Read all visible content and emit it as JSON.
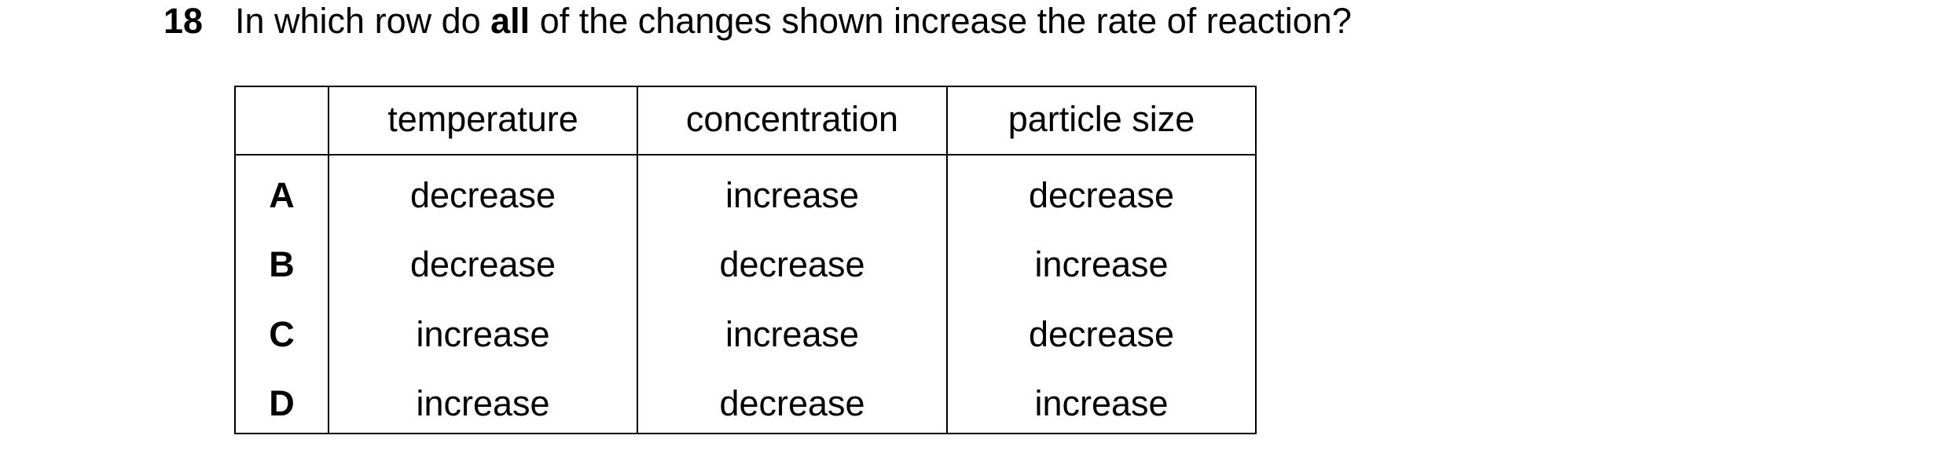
{
  "question": {
    "number": "18",
    "text_before": "In which row do ",
    "emphasis": "all",
    "text_after": " of the changes shown increase the rate of reaction?"
  },
  "table": {
    "header": [
      "",
      "temperature",
      "concentration",
      "particle size"
    ],
    "rows": [
      [
        "A",
        "decrease",
        "increase",
        "decrease"
      ],
      [
        "B",
        "decrease",
        "decrease",
        "increase"
      ],
      [
        "C",
        "increase",
        "increase",
        "decrease"
      ],
      [
        "D",
        "increase",
        "decrease",
        "increase"
      ]
    ]
  }
}
